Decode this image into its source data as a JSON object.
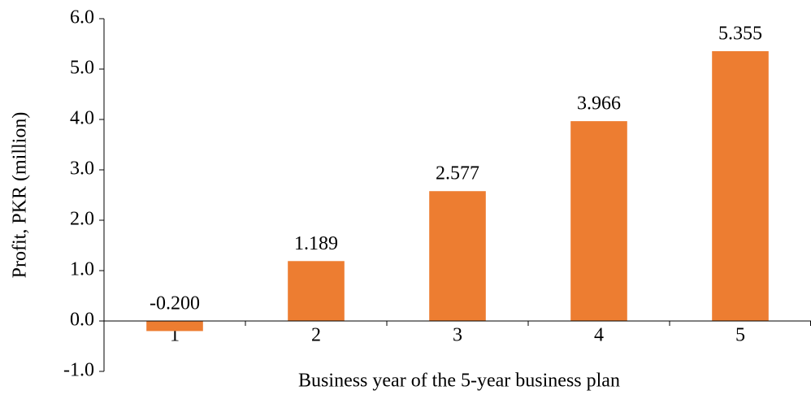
{
  "chart_data": {
    "type": "bar",
    "x_label": "Business year of the 5-year business plan",
    "y_label": "Profit, PKR (million)",
    "categories": [
      "1",
      "2",
      "3",
      "4",
      "5"
    ],
    "values": [
      -0.2,
      1.189,
      2.577,
      3.966,
      5.355
    ],
    "value_labels": [
      "-0.200",
      "1.189",
      "2.577",
      "3.966",
      "5.355"
    ],
    "color": "#ed7d31",
    "ylim": [
      -1,
      6
    ],
    "yticks": [
      {
        "value": -1,
        "label": "-1.0"
      },
      {
        "value": 0,
        "label": "0.0"
      },
      {
        "value": 1,
        "label": "1.0"
      },
      {
        "value": 2,
        "label": "2.0"
      },
      {
        "value": 3,
        "label": "3.0"
      },
      {
        "value": 4,
        "label": "4.0"
      },
      {
        "value": 5,
        "label": "5.0"
      },
      {
        "value": 6,
        "label": "6.0"
      }
    ],
    "grid": false
  }
}
